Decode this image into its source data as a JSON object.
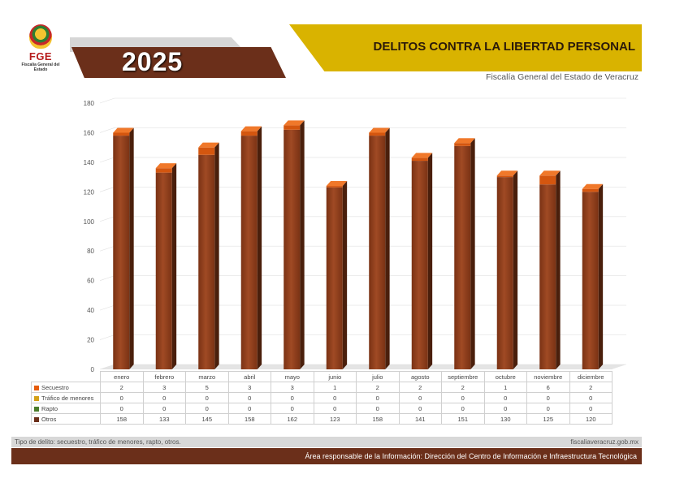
{
  "header": {
    "logo_text": "FGE",
    "logo_subtext": "Fiscalía General del Estado",
    "year": "2025",
    "title": "DELITOS CONTRA LA LIBERTAD PERSONAL",
    "organization": "Fiscalía General del Estado de Veracruz"
  },
  "footer": {
    "note": "Tipo de delito: secuestro, tráfico de menores, rapto, otros.",
    "website": "fiscaliaveracruz.gob.mx",
    "responsible": "Área responsable de la Información: Dirección del Centro de Información e Infraestructura Tecnológica"
  },
  "colors": {
    "header_brown": "#6b2f1a",
    "header_gold": "#d9b300",
    "bar_front": "#8b3a1a",
    "bar_top": "#e65c0c"
  },
  "chart_data": {
    "type": "bar",
    "stacked": true,
    "three_d": true,
    "categories": [
      "enero",
      "febrero",
      "marzo",
      "abril",
      "mayo",
      "junio",
      "julio",
      "agosto",
      "septiembre",
      "octubre",
      "noviembre",
      "diciembre"
    ],
    "series": [
      {
        "name": "Secuestro",
        "color": "#e65c0c",
        "values": [
          2,
          3,
          5,
          3,
          3,
          1,
          2,
          2,
          2,
          1,
          6,
          2
        ]
      },
      {
        "name": "Tráfico de menores",
        "color": "#d4a017",
        "values": [
          0,
          0,
          0,
          0,
          0,
          0,
          0,
          0,
          0,
          0,
          0,
          0
        ]
      },
      {
        "name": "Rapto",
        "color": "#4a7c2a",
        "values": [
          0,
          0,
          0,
          0,
          0,
          0,
          0,
          0,
          0,
          0,
          0,
          0
        ]
      },
      {
        "name": "Otros",
        "color": "#6b2f1a",
        "values": [
          158,
          133,
          145,
          158,
          162,
          123,
          158,
          141,
          151,
          130,
          125,
          120
        ]
      }
    ],
    "yticks": [
      0,
      20,
      40,
      60,
      80,
      100,
      120,
      140,
      160,
      180
    ],
    "ylim": [
      0,
      180
    ],
    "grid": true,
    "legend": "data-table-below"
  }
}
